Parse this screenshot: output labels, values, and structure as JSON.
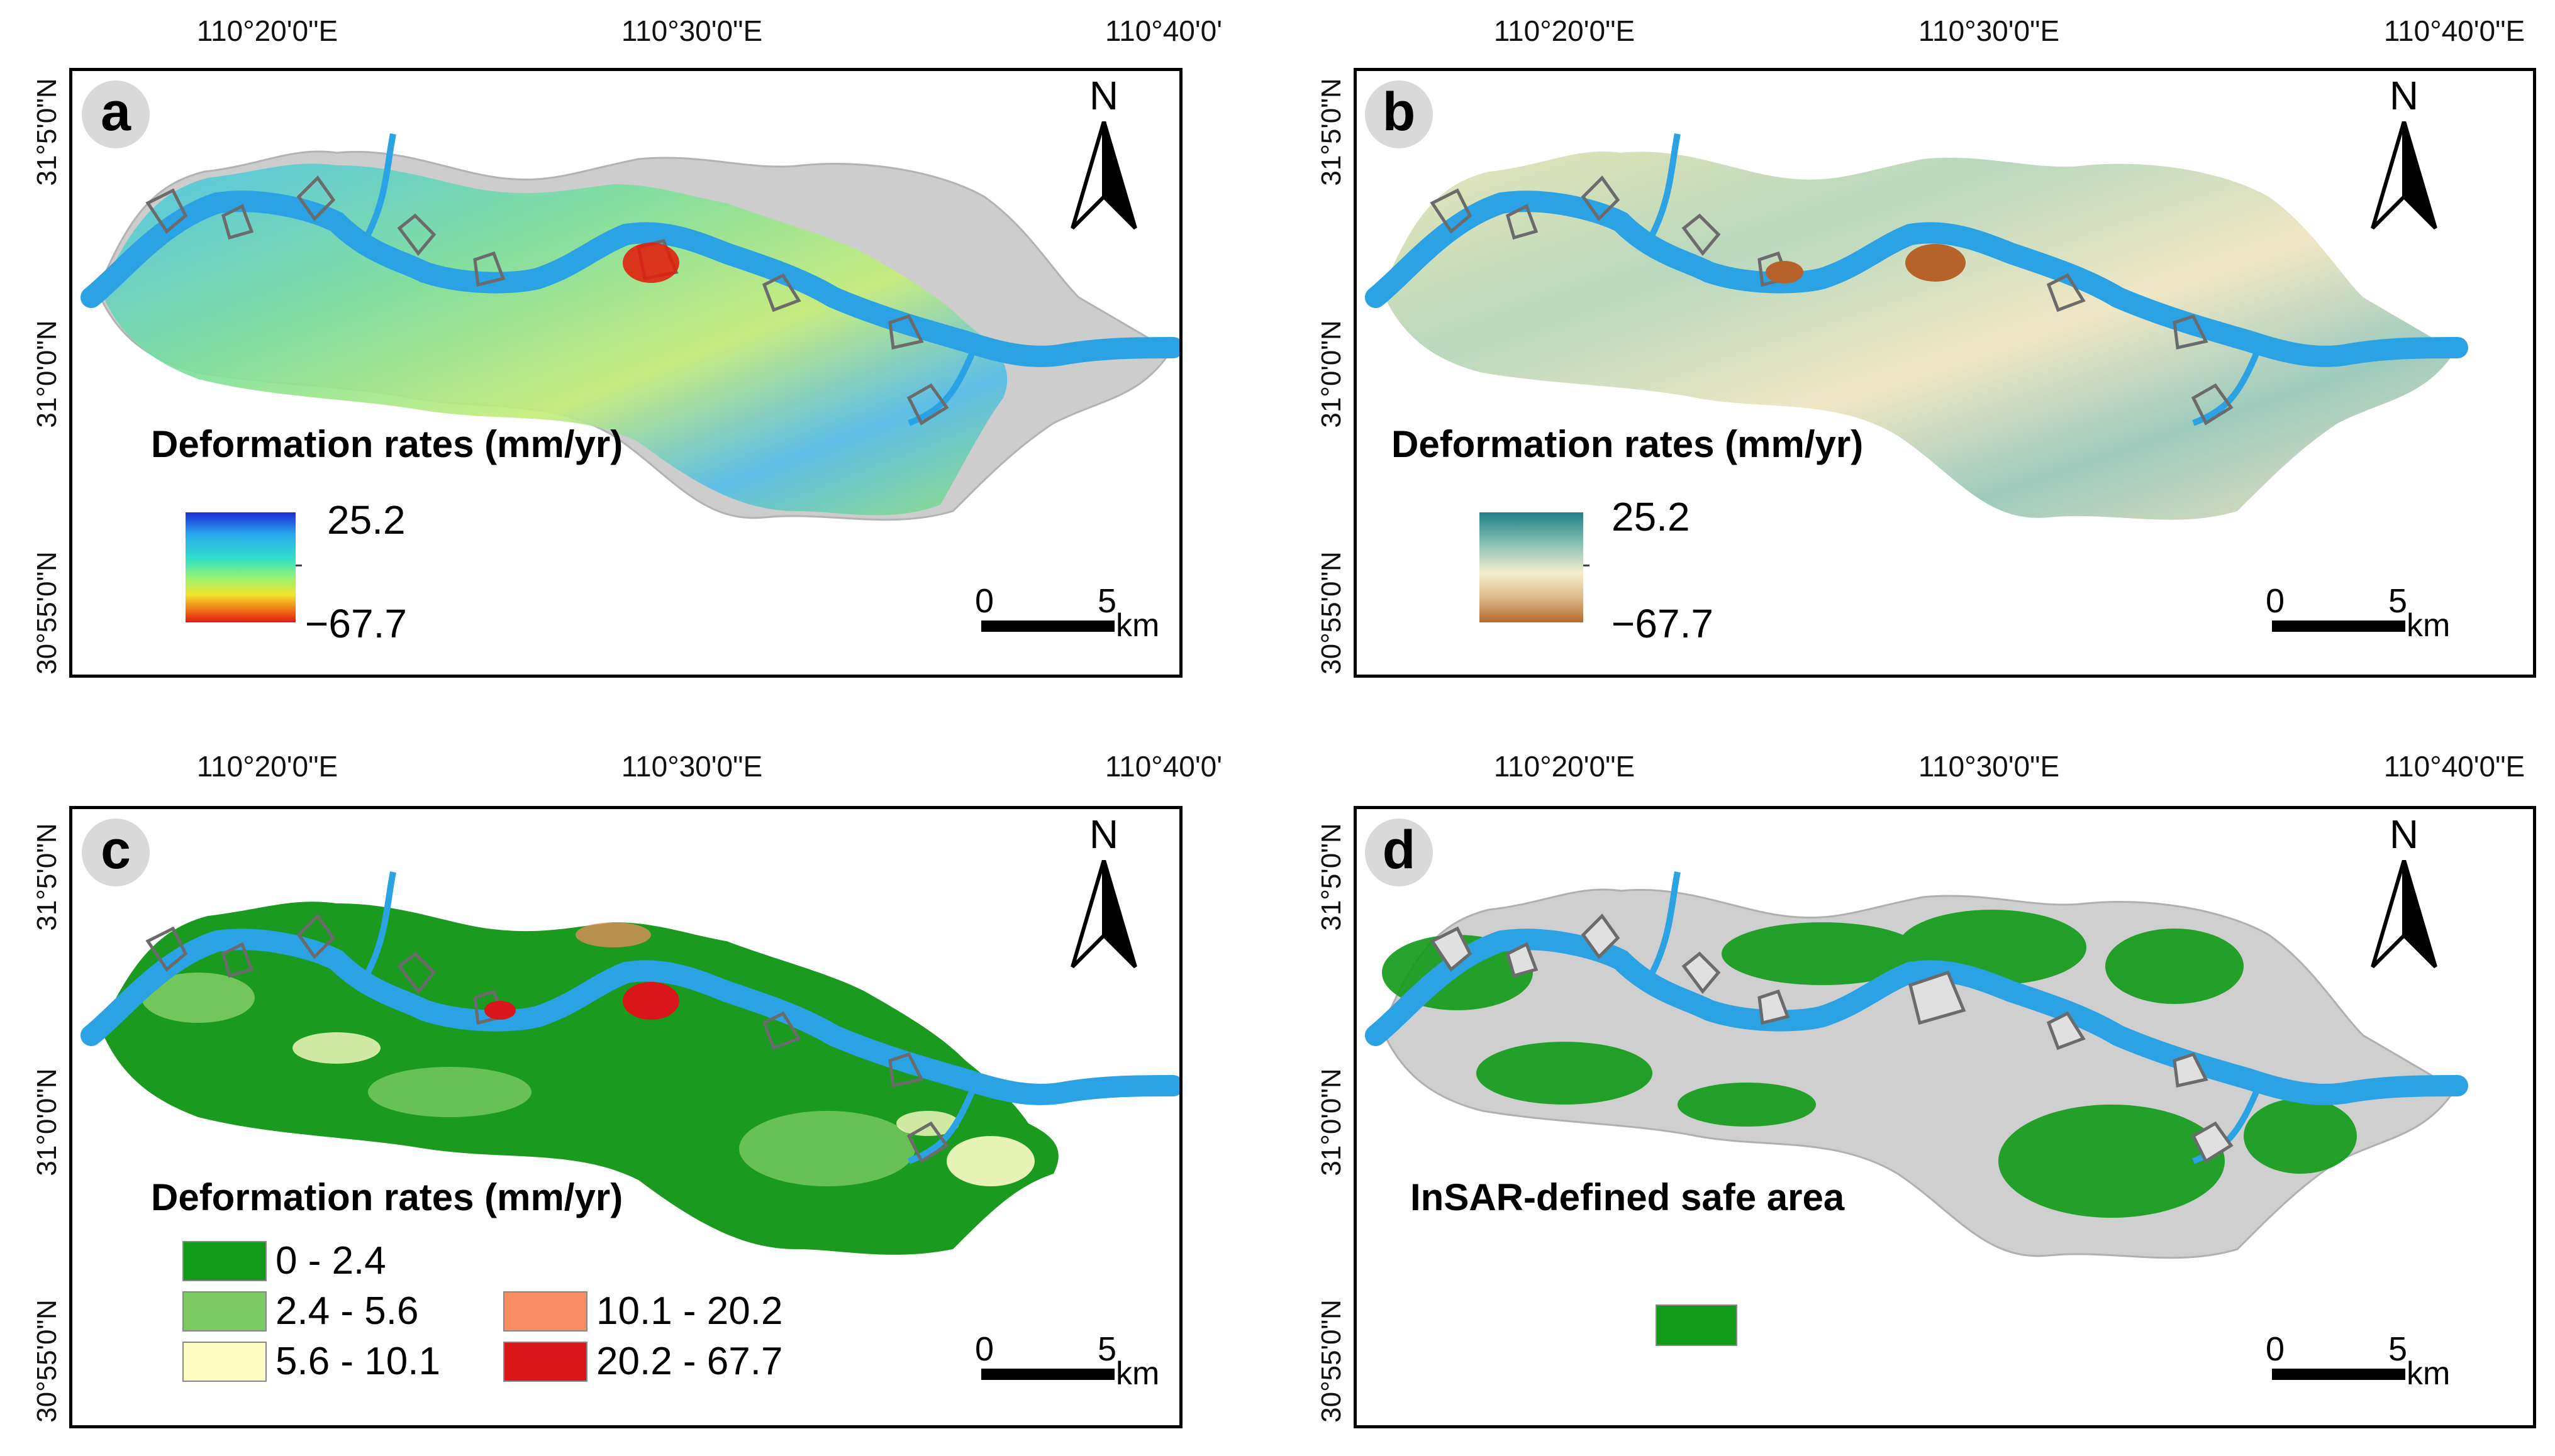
{
  "panels": [
    {
      "letter": "a",
      "lon_ticks": [
        "110°20'0\"E",
        "110°30'0\"E",
        "110°40'0'"
      ],
      "lat_ticks": [
        "31°5'0\"N",
        "31°0'0\"N",
        "30°55'0\"N"
      ],
      "north_label": "N",
      "legend_title": "Deformation rates  (mm/yr)",
      "ramp_max": "25.2",
      "ramp_min": "−67.7",
      "ramp_colors": [
        "#1b2bd6",
        "#29a8ef",
        "#30e0c8",
        "#9cf270",
        "#f3e32e",
        "#f07a16",
        "#e11b10"
      ],
      "scale_start": "0",
      "scale_end": "5",
      "scale_unit": "km"
    },
    {
      "letter": "b",
      "lon_ticks": [
        "110°20'0\"E",
        "110°30'0\"E",
        "110°40'0\"E"
      ],
      "lat_ticks": [
        "31°5'0\"N",
        "31°0'0\"N",
        "30°55'0\"N"
      ],
      "north_label": "N",
      "legend_title": "Deformation rates  (mm/yr)",
      "ramp_max": "25.2",
      "ramp_min": "−67.7",
      "ramp_colors": [
        "#1f7f86",
        "#8ec3b5",
        "#f5efcd",
        "#dcb787",
        "#b36a2c"
      ],
      "scale_start": "0",
      "scale_end": "5",
      "scale_unit": "km"
    },
    {
      "letter": "c",
      "lon_ticks": [
        "110°20'0\"E",
        "110°30'0\"E",
        "110°40'0'"
      ],
      "lat_ticks": [
        "31°5'0\"N",
        "31°0'0\"N",
        "30°55'0\"N"
      ],
      "north_label": "N",
      "legend_title": "Deformation rates  (mm/yr)",
      "classes": [
        {
          "label": "0 - 2.4",
          "color": "#109a17"
        },
        {
          "label": "2.4 - 5.6",
          "color": "#7ccb62"
        },
        {
          "label": "5.6 - 10.1",
          "color": "#fdfdc4"
        },
        {
          "label": "10.1 - 20.2",
          "color": "#f98d63"
        },
        {
          "label": "20.2 - 67.7",
          "color": "#d9161a"
        }
      ],
      "scale_start": "0",
      "scale_end": "5",
      "scale_unit": "km"
    },
    {
      "letter": "d",
      "lon_ticks": [
        "110°20'0\"E",
        "110°30'0\"E",
        "110°40'0\"E"
      ],
      "lat_ticks": [
        "31°5'0\"N",
        "31°0'0\"N",
        "30°55'0\"N"
      ],
      "north_label": "N",
      "legend_title": "InSAR-defined safe area",
      "safe_color": "#109a17",
      "scale_start": "0",
      "scale_end": "5",
      "scale_unit": "km"
    }
  ],
  "colors": {
    "river": "#2aa2e3",
    "landslide_outline": "#6b6b6b",
    "hillshade": "#c9c9c9"
  }
}
